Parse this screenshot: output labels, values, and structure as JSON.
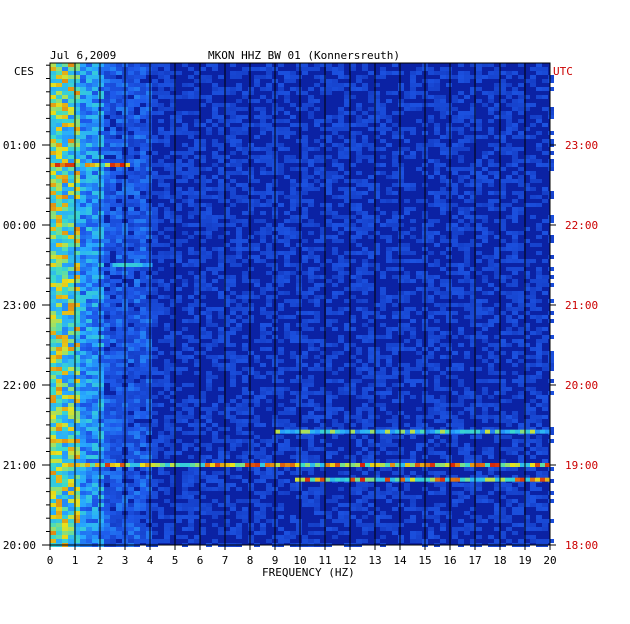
{
  "chart_data": {
    "type": "heatmap",
    "date": "Jul 6,2009",
    "title": "MKON HHZ BW 01 (Konnersreuth)",
    "xlabel": "FREQUENCY (HZ)",
    "left_timezone": "CES",
    "right_timezone": "UTC",
    "xlim": [
      0,
      20
    ],
    "x_ticks": [
      "0",
      "1",
      "2",
      "3",
      "4",
      "5",
      "6",
      "7",
      "8",
      "9",
      "10",
      "11",
      "12",
      "13",
      "14",
      "15",
      "16",
      "17",
      "18",
      "19",
      "20"
    ],
    "left_ticks": [
      "01:00",
      "00:00",
      "23:00",
      "22:00",
      "21:00",
      "20:00"
    ],
    "right_ticks": [
      "23:00",
      "22:00",
      "21:00",
      "20:00",
      "19:00",
      "18:00"
    ],
    "colors": {
      "background": "#0b22a4",
      "low": "#0b22a4",
      "mid": "#2e7bff",
      "high": "#e8e21c",
      "peak": "#d61a0a",
      "utc_text": "#cc0000"
    },
    "bands": [
      {
        "utc": "18:49",
        "freq_range": [
          9.8,
          20
        ],
        "intensity": "high"
      },
      {
        "utc": "19:00",
        "freq_range": [
          1,
          20
        ],
        "intensity": "high"
      },
      {
        "utc": "19:25",
        "freq_range": [
          9,
          20
        ],
        "intensity": "medium"
      },
      {
        "utc": "22:45",
        "freq_range": [
          0,
          3.2
        ],
        "intensity": "high"
      },
      {
        "utc": "21:30",
        "freq_range": [
          2.5,
          4
        ],
        "intensity": "medium"
      }
    ]
  }
}
